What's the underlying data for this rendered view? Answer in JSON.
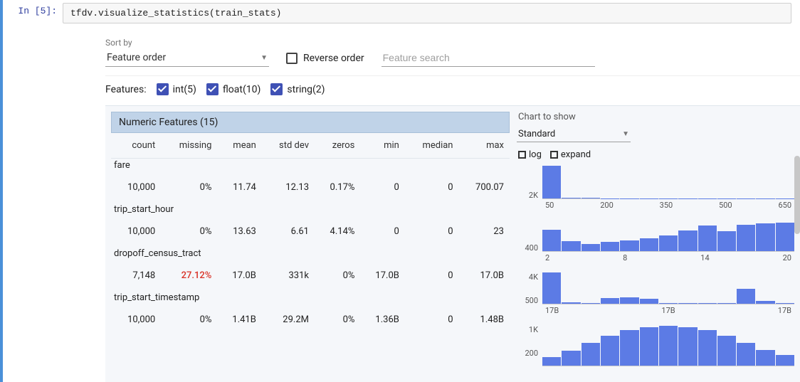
{
  "prompt": "In [5]:",
  "code": "tfdv.visualize_statistics(train_stats)",
  "sort": {
    "label": "Sort by",
    "value": "Feature order"
  },
  "reverse_label": "Reverse order",
  "search_placeholder": "Feature search",
  "features_label": "Features:",
  "feature_types": [
    {
      "label": "int(5)"
    },
    {
      "label": "float(10)"
    },
    {
      "label": "string(2)"
    }
  ],
  "numeric_header": "Numeric Features (15)",
  "columns": [
    "count",
    "missing",
    "mean",
    "std dev",
    "zeros",
    "min",
    "median",
    "max"
  ],
  "rows": [
    {
      "name": "fare",
      "count": "10,000",
      "missing": "0%",
      "missing_high": false,
      "mean": "11.74",
      "stddev": "12.13",
      "zeros": "0.17%",
      "min": "0",
      "median": "0",
      "max": "700.07"
    },
    {
      "name": "trip_start_hour",
      "count": "10,000",
      "missing": "0%",
      "missing_high": false,
      "mean": "13.63",
      "stddev": "6.61",
      "zeros": "4.14%",
      "min": "0",
      "median": "0",
      "max": "23"
    },
    {
      "name": "dropoff_census_tract",
      "count": "7,148",
      "missing": "27.12%",
      "missing_high": true,
      "mean": "17.0B",
      "stddev": "331k",
      "zeros": "0%",
      "min": "17.0B",
      "median": "0",
      "max": "17.0B"
    },
    {
      "name": "trip_start_timestamp",
      "count": "10,000",
      "missing": "0%",
      "missing_high": false,
      "mean": "1.41B",
      "stddev": "29.2M",
      "zeros": "0%",
      "min": "1.36B",
      "median": "0",
      "max": "1.48B"
    }
  ],
  "chart_controls": {
    "label": "Chart to show",
    "value": "Standard",
    "toggles": [
      "log",
      "expand"
    ]
  },
  "histograms": [
    {
      "ylabels": [
        "",
        "2K"
      ],
      "bars": [
        100,
        3,
        2,
        1,
        1,
        1,
        1,
        1,
        1,
        1,
        1,
        1,
        1
      ],
      "xticks": [
        "50",
        "200",
        "350",
        "500",
        "650"
      ]
    },
    {
      "ylabels": [
        "",
        "400"
      ],
      "bars": [
        65,
        30,
        22,
        28,
        32,
        40,
        48,
        62,
        78,
        60,
        80,
        85,
        88
      ],
      "xticks": [
        "2",
        "8",
        "14",
        "20"
      ]
    },
    {
      "ylabels": [
        "4K",
        "500"
      ],
      "bars": [
        95,
        5,
        2,
        18,
        20,
        16,
        2,
        2,
        2,
        2,
        45,
        8,
        2
      ],
      "xticks": [
        "17B",
        "17B",
        "17B"
      ]
    },
    {
      "ylabels": [
        "1K",
        "200"
      ],
      "bars": [
        20,
        35,
        55,
        72,
        85,
        92,
        95,
        92,
        85,
        72,
        55,
        38,
        25
      ],
      "xticks": [
        "",
        "",
        "",
        ""
      ]
    }
  ],
  "colors": {
    "bar": "#5c7be5",
    "header_bg": "#c0d3e8",
    "panel_bg": "#f5f7fa",
    "missing_high": "#d93025",
    "checkbox": "#3f51b5"
  }
}
